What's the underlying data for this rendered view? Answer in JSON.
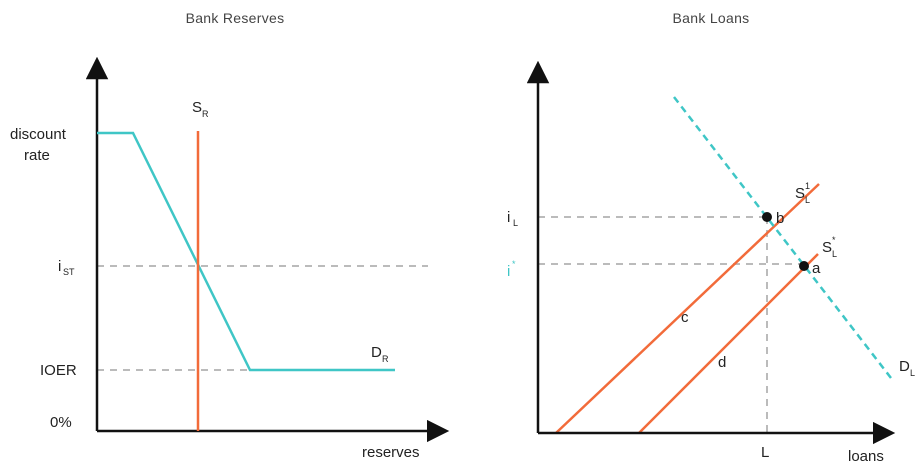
{
  "left_panel": {
    "title": "Bank Reserves",
    "y_labels": {
      "discount_rate_line1": "discount",
      "discount_rate_line2": "rate",
      "i_st_main": "i",
      "i_st_sub": "ST",
      "ioer": "IOER",
      "zero": "0%"
    },
    "x_label": "reserves",
    "supply_label_main": "S",
    "supply_label_sub": "R",
    "demand_label_main": "D",
    "demand_label_sub": "R"
  },
  "right_panel": {
    "title": "Bank Loans",
    "y_labels": {
      "i_l_main": "i",
      "i_l_sub": "L",
      "i_star_main": "i",
      "i_star_sup": "*"
    },
    "x_label": "loans",
    "x_tick": "L",
    "supply1_main": "S",
    "supply1_sub": "L",
    "supply1_sup": "1",
    "supply_star_main": "S",
    "supply_star_sub": "L",
    "supply_star_sup": "*",
    "demand_main": "D",
    "demand_sub": "L",
    "point_b": "b",
    "point_a": "a",
    "line_c": "c",
    "line_d": "d"
  },
  "colors": {
    "axis": "#111111",
    "supply": "#f26b3a",
    "demand": "#3fc6c6",
    "guide": "#bbbbbb"
  }
}
